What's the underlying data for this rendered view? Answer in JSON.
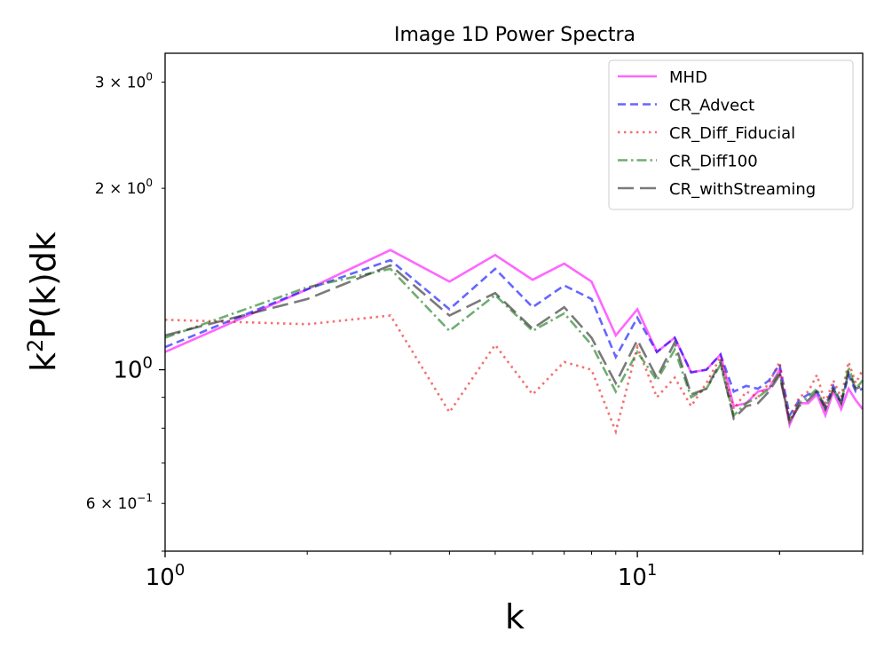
{
  "chart_data": {
    "type": "line",
    "title": "Image 1D Power Spectra",
    "xlabel": "k",
    "ylabel_base": "k",
    "ylabel_sup": "2",
    "ylabel_rest": "P(k)dk",
    "xscale": "log",
    "yscale": "log",
    "xlim": [
      1,
      30
    ],
    "ylim": [
      0.5,
      3.35
    ],
    "x_major_ticks": [
      {
        "value": 1,
        "base": "10",
        "exp": "0"
      },
      {
        "value": 10,
        "base": "10",
        "exp": "1"
      }
    ],
    "y_major_ticks": [
      {
        "value": 1.0,
        "base": "10",
        "exp": "0"
      }
    ],
    "y_minor_labels": [
      {
        "value": 0.6,
        "coef": "6 × 10",
        "exp": "−1"
      },
      {
        "value": 2.0,
        "coef": "2 × 10",
        "exp": "0"
      },
      {
        "value": 3.0,
        "coef": "3 × 10",
        "exp": "0"
      }
    ],
    "legend_position": "top-right",
    "x": [
      1,
      2,
      3,
      4,
      5,
      6,
      7,
      8,
      9,
      10,
      11,
      12,
      13,
      14,
      15,
      16,
      17,
      18,
      19,
      20,
      21,
      22,
      23,
      24,
      25,
      26,
      27,
      28,
      29,
      30
    ],
    "series": [
      {
        "name": "MHD",
        "color": "#ff00ff",
        "dash": "solid",
        "values": [
          1.07,
          1.36,
          1.58,
          1.4,
          1.55,
          1.41,
          1.5,
          1.4,
          1.14,
          1.26,
          1.07,
          1.13,
          0.99,
          1.0,
          1.06,
          0.87,
          0.88,
          0.92,
          0.93,
          1.0,
          0.81,
          0.88,
          0.88,
          0.91,
          0.84,
          0.92,
          0.86,
          0.93,
          0.89,
          0.86
        ]
      },
      {
        "name": "CR_Advect",
        "color": "#0000ff",
        "dash": "dashed",
        "values": [
          1.09,
          1.36,
          1.52,
          1.26,
          1.47,
          1.27,
          1.38,
          1.31,
          1.05,
          1.22,
          1.07,
          1.13,
          0.99,
          1.0,
          1.06,
          0.92,
          0.94,
          0.93,
          0.96,
          1.02,
          0.84,
          0.89,
          0.91,
          0.92,
          0.87,
          0.94,
          0.88,
          0.98,
          0.92,
          0.93
        ]
      },
      {
        "name": "CR_Diff_Fiducial",
        "color": "#ee1111",
        "dash": "dotted",
        "values": [
          1.21,
          1.19,
          1.23,
          0.85,
          1.1,
          0.91,
          1.03,
          1.0,
          0.79,
          1.09,
          0.9,
          0.97,
          0.87,
          0.95,
          1.05,
          0.86,
          0.92,
          0.9,
          0.95,
          1.03,
          0.82,
          0.9,
          0.92,
          0.98,
          0.88,
          0.96,
          0.9,
          1.03,
          0.95,
          1.0
        ]
      },
      {
        "name": "CR_Diff100",
        "color": "#117711",
        "dash": "dashdot",
        "values": [
          1.13,
          1.37,
          1.47,
          1.16,
          1.33,
          1.16,
          1.24,
          1.1,
          0.92,
          1.07,
          0.96,
          1.08,
          0.9,
          0.93,
          1.02,
          0.84,
          0.88,
          0.9,
          0.93,
          0.99,
          0.82,
          0.88,
          0.9,
          0.93,
          0.86,
          0.93,
          0.88,
          1.01,
          0.93,
          0.96
        ]
      },
      {
        "name": "CR_withStreaming",
        "color": "#222222",
        "dash": "longdash",
        "values": [
          1.14,
          1.31,
          1.49,
          1.23,
          1.34,
          1.17,
          1.27,
          1.13,
          0.95,
          1.12,
          0.97,
          1.11,
          0.91,
          0.93,
          1.03,
          0.83,
          0.87,
          0.88,
          0.92,
          0.98,
          0.82,
          0.87,
          0.89,
          0.92,
          0.86,
          0.93,
          0.88,
          0.99,
          0.93,
          0.94
        ]
      }
    ]
  }
}
